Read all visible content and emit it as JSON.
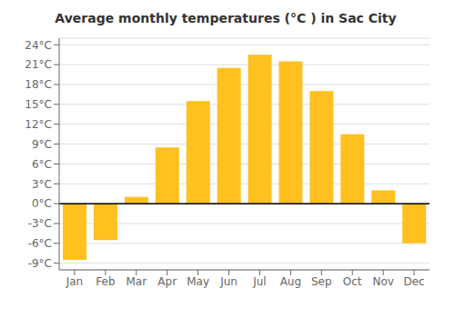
{
  "chart_data": {
    "type": "bar",
    "title": "Average monthly temperatures (°C ) in Sac City",
    "categories": [
      "Jan",
      "Feb",
      "Mar",
      "Apr",
      "May",
      "Jun",
      "Jul",
      "Aug",
      "Sep",
      "Oct",
      "Nov",
      "Dec"
    ],
    "values": [
      -8.5,
      -5.5,
      1.0,
      8.5,
      15.5,
      20.5,
      22.5,
      21.5,
      17.0,
      10.5,
      2.0,
      -6.0
    ],
    "color": "#FFC020",
    "ylim": [
      -10,
      25
    ],
    "yticks": [
      {
        "value": -9,
        "label": "-9°C"
      },
      {
        "value": -6,
        "label": "-6°C"
      },
      {
        "value": -3,
        "label": "-3°C"
      },
      {
        "value": 0,
        "label": "0°C"
      },
      {
        "value": 3,
        "label": "3°C"
      },
      {
        "value": 6,
        "label": "6°C"
      },
      {
        "value": 9,
        "label": "9°C"
      },
      {
        "value": 12,
        "label": "12°C"
      },
      {
        "value": 15,
        "label": "15°C"
      },
      {
        "value": 18,
        "label": "18°C"
      },
      {
        "value": 21,
        "label": "21°C"
      },
      {
        "value": 24,
        "label": "24°C"
      }
    ],
    "grid": true
  }
}
